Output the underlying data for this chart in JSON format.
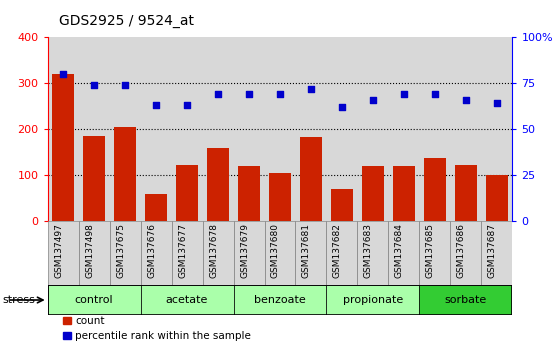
{
  "title": "GDS2925 / 9524_at",
  "samples": [
    "GSM137497",
    "GSM137498",
    "GSM137675",
    "GSM137676",
    "GSM137677",
    "GSM137678",
    "GSM137679",
    "GSM137680",
    "GSM137681",
    "GSM137682",
    "GSM137683",
    "GSM137684",
    "GSM137685",
    "GSM137686",
    "GSM137687"
  ],
  "counts": [
    320,
    185,
    205,
    60,
    122,
    160,
    120,
    105,
    182,
    70,
    120,
    120,
    138,
    122,
    100
  ],
  "percentile_raw": [
    80,
    74,
    74,
    63,
    63,
    69,
    69,
    69,
    72,
    62,
    66,
    69,
    69,
    66,
    64
  ],
  "groups": [
    {
      "label": "control",
      "start": 0,
      "end": 3,
      "color": "#aaffaa"
    },
    {
      "label": "acetate",
      "start": 3,
      "end": 6,
      "color": "#aaffaa"
    },
    {
      "label": "benzoate",
      "start": 6,
      "end": 9,
      "color": "#aaffaa"
    },
    {
      "label": "propionate",
      "start": 9,
      "end": 12,
      "color": "#aaffaa"
    },
    {
      "label": "sorbate",
      "start": 12,
      "end": 15,
      "color": "#33cc33"
    }
  ],
  "bar_color": "#cc2200",
  "dot_color": "#0000cc",
  "ylim_left": [
    0,
    400
  ],
  "ylim_right": [
    0,
    100
  ],
  "yticks_left": [
    0,
    100,
    200,
    300,
    400
  ],
  "yticks_right": [
    0,
    25,
    50,
    75,
    100
  ],
  "ytick_labels_right": [
    "0",
    "25",
    "50",
    "75",
    "100%"
  ],
  "col_bg": "#d8d8d8",
  "stress_label": "stress"
}
